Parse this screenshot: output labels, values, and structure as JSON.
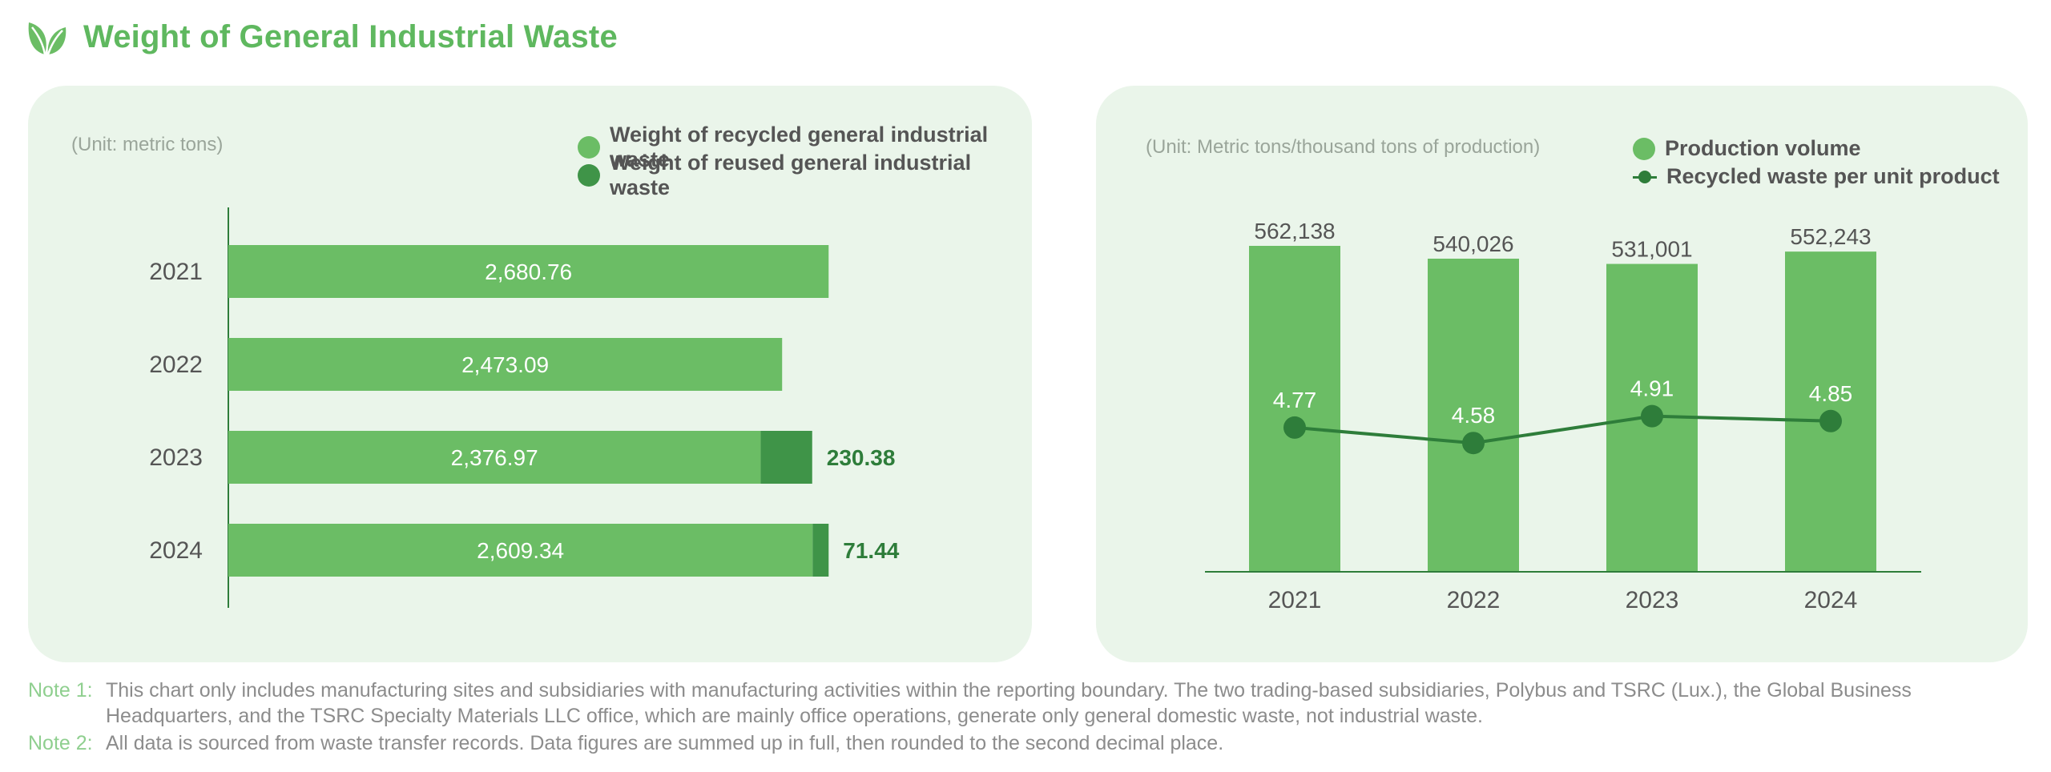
{
  "page": {
    "title": "Weight of General Industrial Waste",
    "icon": "leaf-icon"
  },
  "colors": {
    "primary_green": "#6bbd65",
    "dark_green": "#3f9448",
    "line_green": "#2e7d3a",
    "panel_bg": "#eaf5ea"
  },
  "notes": [
    {
      "label": "Note 1:",
      "text": "This chart only includes manufacturing sites and subsidiaries with manufacturing activities within the reporting boundary. The two trading-based subsidiaries, Polybus and TSRC (Lux.), the Global Business Headquarters, and the TSRC Specialty Materials LLC office, which are mainly office operations, generate only general domestic waste, not industrial waste."
    },
    {
      "label": "Note 2:",
      "text": "All data is sourced from waste transfer records. Data figures are summed up in full, then rounded to the second decimal place."
    }
  ],
  "chart_data": [
    {
      "type": "bar",
      "orientation": "horizontal",
      "stacked": true,
      "unit_label": "(Unit: metric tons)",
      "categories": [
        "2021",
        "2022",
        "2023",
        "2024"
      ],
      "series": [
        {
          "name": "Weight of recycled general industrial waste",
          "values": [
            2680.76,
            2473.09,
            2376.97,
            2609.34
          ],
          "labels": [
            "2,680.76",
            "2,473.09",
            "2,376.97",
            "2,609.34"
          ]
        },
        {
          "name": "Weight of reused general industrial waste",
          "values": [
            0,
            0,
            230.38,
            71.44
          ],
          "labels": [
            "",
            "",
            "230.38",
            "71.44"
          ]
        }
      ],
      "xlim": [
        0,
        3000
      ],
      "legend_position": "top-right"
    },
    {
      "type": "bar+line",
      "unit_label": "(Unit: Metric tons/thousand tons of production)",
      "categories": [
        "2021",
        "2022",
        "2023",
        "2024"
      ],
      "series": [
        {
          "name": "Production volume",
          "type": "bar",
          "values": [
            562138,
            540026,
            531001,
            552243
          ],
          "labels": [
            "562,138",
            "540,026",
            "531,001",
            "552,243"
          ]
        },
        {
          "name": "Recycled waste per unit product",
          "type": "line",
          "values": [
            4.77,
            4.58,
            4.91,
            4.85
          ],
          "labels": [
            "4.77",
            "4.58",
            "4.91",
            "4.85"
          ]
        }
      ],
      "bar_ylim": [
        0,
        562138
      ],
      "line_ylim": [
        3.0,
        7.0
      ],
      "legend_position": "top-right"
    }
  ]
}
